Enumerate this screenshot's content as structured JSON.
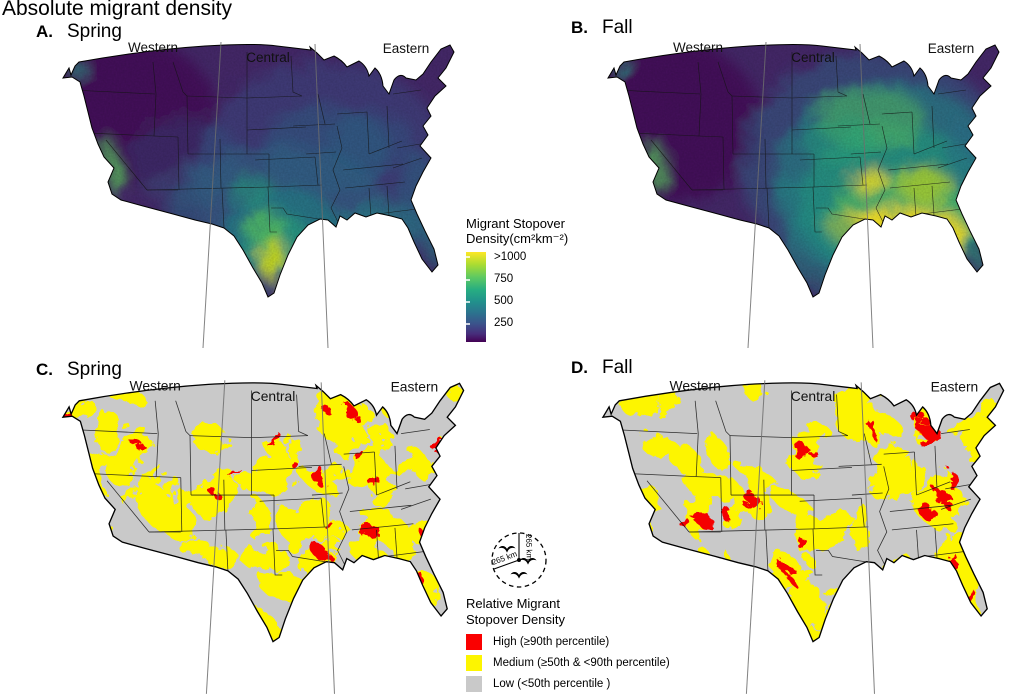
{
  "title": "Absolute migrant density",
  "region_labels": [
    "Western",
    "Central",
    "Eastern"
  ],
  "panels": [
    {
      "id": "A.",
      "season": "Spring",
      "type": "continuous"
    },
    {
      "id": "B.",
      "season": "Fall",
      "type": "continuous"
    },
    {
      "id": "C.",
      "season": "Spring",
      "type": "categorical"
    },
    {
      "id": "D.",
      "season": "Fall",
      "type": "categorical"
    }
  ],
  "colorbar": {
    "title_line1": "Migrant Stopover",
    "title_line2": "Density(cm²km⁻²)",
    "ticks": [
      ">1000",
      "750",
      "500",
      "250"
    ],
    "gradient_stops": [
      "#fde725 0%",
      "#aadc32 14%",
      "#5ec962 28%",
      "#27ad81 42%",
      "#21918c 55%",
      "#2c728e 68%",
      "#3b528b 80%",
      "#472d7b 91%",
      "#440154 100%"
    ]
  },
  "relative_legend": {
    "title_line1": "Relative Migrant",
    "title_line2": "Stopover Density",
    "items": [
      {
        "label": "High (≥90th percentile)",
        "color": "#fa0000"
      },
      {
        "label": "Medium (≥50th & <90th percentile)",
        "color": "#fdf500"
      },
      {
        "label": "Low (<50th percentile )",
        "color": "#c9c9c9"
      }
    ]
  },
  "scale_marker": {
    "radius_label_vertical": "265 km",
    "radius_label_diagonal": "265 km"
  },
  "map_colors": {
    "continuous_base": "#46296b",
    "categorical_base": "#c9c9c9",
    "categorical_medium": "#fdf500",
    "categorical_high": "#f40000",
    "state_border": "#141414",
    "coast_border": "#000000"
  }
}
